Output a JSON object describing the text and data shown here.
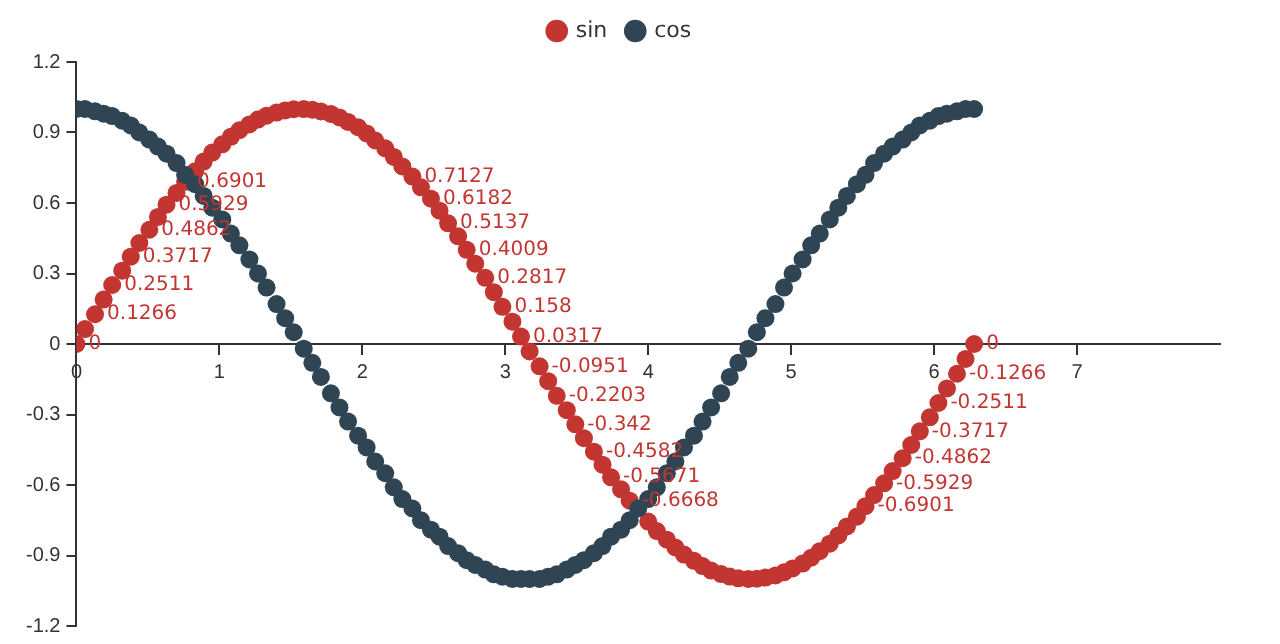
{
  "chart_data": {
    "type": "scatter",
    "legend": "top",
    "grid": false,
    "marker": "circle",
    "xlim": [
      0,
      8
    ],
    "xticks": [
      0,
      1,
      2,
      3,
      4,
      5,
      6,
      7
    ],
    "ylim": [
      -1.2,
      1.2
    ],
    "yticks": [
      -1.2,
      -0.9,
      -0.6,
      -0.3,
      0,
      0.3,
      0.6,
      0.9,
      1.2
    ],
    "x": [
      0,
      0.06,
      0.13,
      0.19,
      0.25,
      0.32,
      0.38,
      0.44,
      0.51,
      0.57,
      0.63,
      0.7,
      0.76,
      0.83,
      0.89,
      0.95,
      1.02,
      1.08,
      1.14,
      1.21,
      1.27,
      1.33,
      1.4,
      1.46,
      1.52,
      1.59,
      1.65,
      1.71,
      1.78,
      1.84,
      1.9,
      1.97,
      2.03,
      2.09,
      2.16,
      2.22,
      2.28,
      2.35,
      2.41,
      2.48,
      2.54,
      2.6,
      2.67,
      2.73,
      2.79,
      2.86,
      2.92,
      2.98,
      3.05,
      3.11,
      3.17,
      3.24,
      3.3,
      3.36,
      3.43,
      3.49,
      3.55,
      3.62,
      3.68,
      3.74,
      3.81,
      3.87,
      3.93,
      4.0,
      4.06,
      4.13,
      4.19,
      4.25,
      4.32,
      4.38,
      4.44,
      4.51,
      4.57,
      4.63,
      4.7,
      4.76,
      4.82,
      4.89,
      4.95,
      5.01,
      5.08,
      5.14,
      5.2,
      5.27,
      5.33,
      5.39,
      5.46,
      5.52,
      5.58,
      5.65,
      5.71,
      5.78,
      5.84,
      5.9,
      5.97,
      6.03,
      6.09,
      6.16,
      6.22,
      6.28
    ],
    "series": [
      {
        "name": "sin",
        "color": "#c23531",
        "values": [
          0,
          0.0634,
          0.1266,
          0.1893,
          0.2511,
          0.312,
          0.3717,
          0.4298,
          0.4862,
          0.5406,
          0.5929,
          0.6428,
          0.6901,
          0.7346,
          0.7761,
          0.8146,
          0.8497,
          0.8815,
          0.9096,
          0.9341,
          0.9549,
          0.9718,
          0.9848,
          0.9938,
          0.9989,
          0.9999,
          0.9969,
          0.9898,
          0.9788,
          0.9639,
          0.945,
          0.9224,
          0.896,
          0.866,
          0.8326,
          0.7958,
          0.7557,
          0.7127,
          0.6668,
          0.6182,
          0.5671,
          0.5137,
          0.4582,
          0.4009,
          0.342,
          0.2817,
          0.2203,
          0.158,
          0.0951,
          0.0317,
          -0.0317,
          -0.0951,
          -0.158,
          -0.2203,
          -0.2817,
          -0.342,
          -0.4009,
          -0.4582,
          -0.5137,
          -0.5671,
          -0.6182,
          -0.6668,
          null,
          -0.7557,
          -0.7958,
          -0.8326,
          -0.866,
          -0.896,
          -0.9224,
          -0.945,
          -0.9639,
          -0.9788,
          -0.9898,
          -0.9969,
          -0.9999,
          -0.9989,
          -0.9938,
          -0.9848,
          -0.9718,
          -0.9549,
          -0.9341,
          -0.9096,
          -0.8815,
          -0.8497,
          -0.8146,
          -0.7761,
          -0.7346,
          -0.6901,
          -0.6428,
          -0.5929,
          -0.5406,
          -0.4862,
          -0.4298,
          -0.3717,
          -0.312,
          -0.2511,
          -0.1893,
          -0.1266,
          -0.0634,
          0
        ],
        "value_labels": [
          "0",
          null,
          "0.1266",
          null,
          "0.2511",
          null,
          "0.3717",
          null,
          "0.4862",
          null,
          "0.5929",
          null,
          "0.6901",
          null,
          null,
          null,
          null,
          null,
          null,
          null,
          null,
          null,
          null,
          null,
          null,
          null,
          null,
          null,
          null,
          null,
          null,
          null,
          null,
          null,
          null,
          null,
          null,
          "0.7127",
          null,
          "0.6182",
          null,
          "0.5137",
          null,
          "0.4009",
          null,
          "0.2817",
          null,
          "0.158",
          null,
          "0.0317",
          null,
          "-0.0951",
          null,
          "-0.2203",
          null,
          "-0.342",
          null,
          "-0.4582",
          null,
          "-0.5671",
          null,
          "-0.6668",
          null,
          null,
          null,
          null,
          null,
          null,
          null,
          null,
          null,
          null,
          null,
          null,
          null,
          null,
          null,
          null,
          null,
          null,
          null,
          null,
          null,
          null,
          null,
          null,
          null,
          "-0.6901",
          null,
          "-0.5929",
          null,
          "-0.4862",
          null,
          "-0.3717",
          null,
          "-0.2511",
          null,
          "-0.1266",
          null,
          "0"
        ]
      },
      {
        "name": "cos",
        "color": "#2f4554",
        "values": [
          1,
          1.0,
          0.99,
          0.98,
          0.97,
          0.95,
          0.93,
          0.9,
          0.87,
          0.84,
          0.81,
          0.77,
          0.72,
          0.68,
          0.63,
          0.58,
          0.53,
          0.47,
          0.42,
          0.36,
          0.3,
          0.24,
          0.17,
          0.11,
          0.05,
          -0.02,
          -0.08,
          -0.14,
          -0.21,
          -0.27,
          -0.33,
          -0.39,
          -0.44,
          -0.5,
          -0.55,
          -0.61,
          -0.66,
          -0.7,
          -0.75,
          -0.79,
          -0.82,
          -0.86,
          -0.89,
          -0.92,
          -0.94,
          -0.96,
          -0.98,
          -0.99,
          -1.0,
          -1.0,
          -1.0,
          -1.0,
          -0.99,
          -0.98,
          -0.96,
          -0.94,
          -0.92,
          -0.89,
          -0.86,
          -0.82,
          -0.79,
          -0.75,
          -0.7,
          -0.66,
          -0.61,
          -0.55,
          -0.5,
          -0.44,
          -0.39,
          -0.33,
          -0.27,
          -0.21,
          -0.14,
          -0.08,
          -0.02,
          0.05,
          0.11,
          0.17,
          0.24,
          0.3,
          0.36,
          0.42,
          0.47,
          0.53,
          0.58,
          0.63,
          0.68,
          0.72,
          0.77,
          0.81,
          0.84,
          0.87,
          0.9,
          0.93,
          0.95,
          0.97,
          0.98,
          0.99,
          1.0,
          1
        ]
      }
    ]
  }
}
